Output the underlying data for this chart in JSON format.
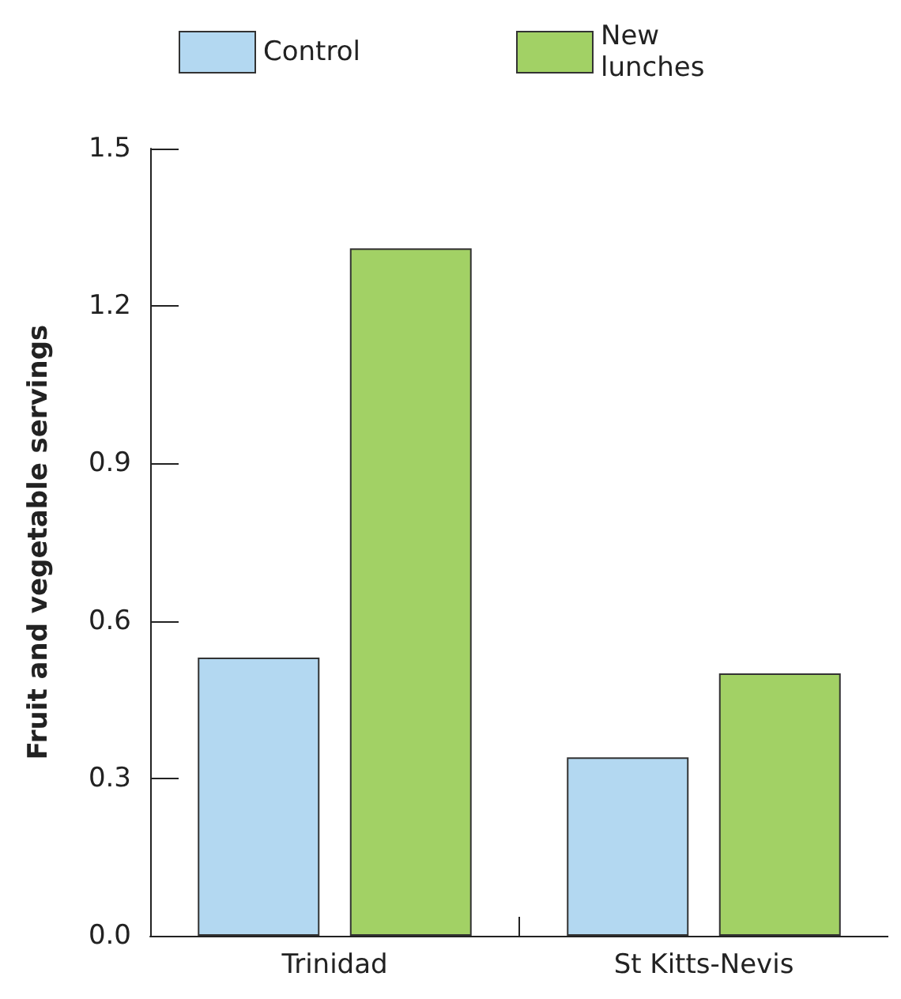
{
  "chart_data": {
    "type": "bar",
    "ylabel": "Fruit and vegetable servings",
    "categories": [
      "Trinidad",
      "St Kitts-Nevis"
    ],
    "series": [
      {
        "name": "Control",
        "color": "#b3d8f1",
        "values": [
          0.53,
          0.34
        ]
      },
      {
        "name": "New lunches",
        "color": "#a2d165",
        "values": [
          1.31,
          0.5
        ]
      }
    ],
    "ylim": [
      0,
      1.5
    ],
    "yticks": [
      {
        "value": 0,
        "label": "0.0"
      },
      0.3,
      0.6,
      0.9,
      1.2,
      1.5
    ],
    "grid": false,
    "legend": "top"
  }
}
